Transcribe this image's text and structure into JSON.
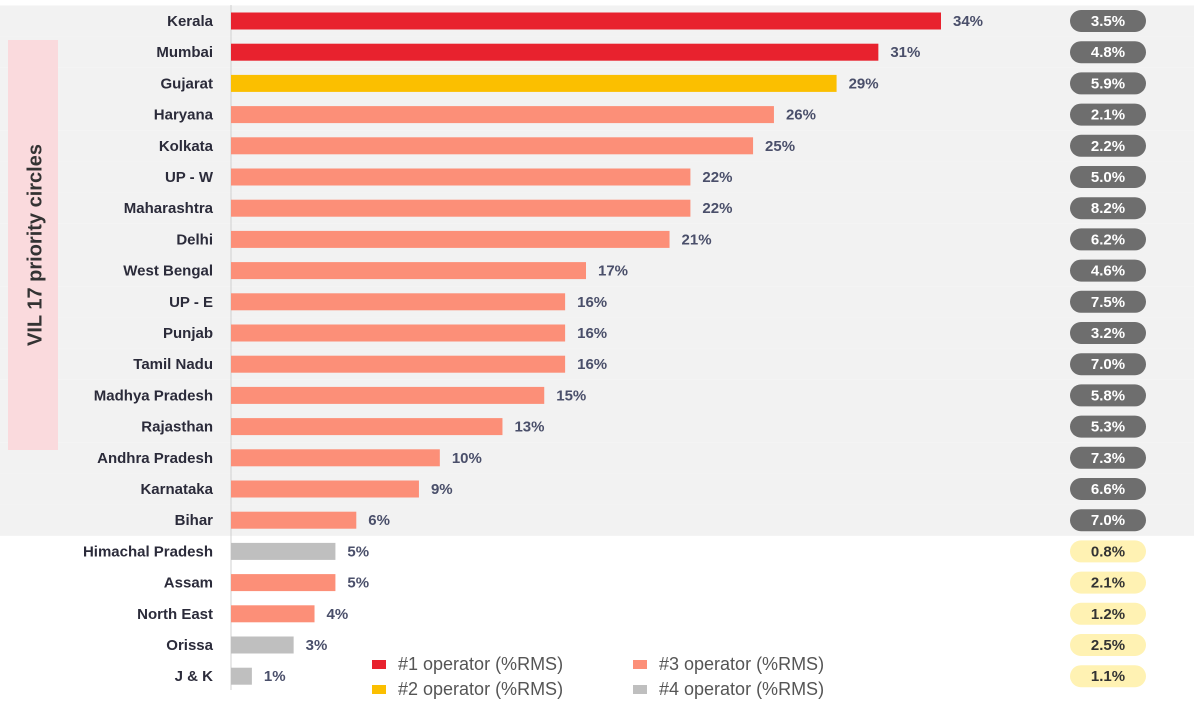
{
  "chart_data": {
    "type": "bar",
    "group_label": "VIL 17 priority circles",
    "categories": [
      "Kerala",
      "Mumbai",
      "Gujarat",
      "Haryana",
      "Kolkata",
      "UP - W",
      "Maharashtra",
      "Delhi",
      "West Bengal",
      "UP - E",
      "Punjab",
      "Tamil Nadu",
      "Madhya Pradesh",
      "Rajasthan",
      "Andhra Pradesh",
      "Karnataka",
      "Bihar",
      "Himachal Pradesh",
      "Assam",
      "North East",
      "Orissa",
      "J & K"
    ],
    "values": [
      34,
      31,
      29,
      26,
      25,
      22,
      22,
      21,
      17,
      16,
      16,
      16,
      15,
      13,
      10,
      9,
      6,
      5,
      5,
      4,
      3,
      1
    ],
    "value_labels": [
      "34%",
      "31%",
      "29%",
      "26%",
      "25%",
      "22%",
      "22%",
      "21%",
      "17%",
      "16%",
      "16%",
      "16%",
      "15%",
      "13%",
      "10%",
      "9%",
      "6%",
      "5%",
      "5%",
      "4%",
      "3%",
      "1%"
    ],
    "bar_colors": [
      "#e8222e",
      "#e8222e",
      "#fbbf00",
      "#fc8f78",
      "#fc8f78",
      "#fc8f78",
      "#fc8f78",
      "#fc8f78",
      "#fc8f78",
      "#fc8f78",
      "#fc8f78",
      "#fc8f78",
      "#fc8f78",
      "#fc8f78",
      "#fc8f78",
      "#fc8f78",
      "#fc8f78",
      "#bfbfbf",
      "#fc8f78",
      "#fc8f78",
      "#bfbfbf",
      "#bfbfbf"
    ],
    "side_values": [
      3.5,
      4.8,
      5.9,
      2.1,
      2.2,
      5.0,
      8.2,
      6.2,
      4.6,
      7.5,
      3.2,
      7.0,
      5.8,
      5.3,
      7.3,
      6.6,
      7.0,
      0.8,
      2.1,
      1.2,
      2.5,
      1.1
    ],
    "side_labels": [
      "3.5%",
      "4.8%",
      "5.9%",
      "2.1%",
      "2.2%",
      "5.0%",
      "8.2%",
      "6.2%",
      "4.6%",
      "7.5%",
      "3.2%",
      "7.0%",
      "5.8%",
      "5.3%",
      "7.3%",
      "6.6%",
      "7.0%",
      "0.8%",
      "2.1%",
      "1.2%",
      "2.5%",
      "1.1%"
    ],
    "priority": [
      true,
      true,
      true,
      true,
      true,
      true,
      true,
      true,
      true,
      true,
      true,
      true,
      true,
      true,
      true,
      true,
      true,
      false,
      false,
      false,
      false,
      false
    ],
    "xlim": [
      0,
      34
    ],
    "legend": [
      {
        "name": "#1 operator (%RMS)",
        "color": "#e8222e"
      },
      {
        "name": "#2 operator (%RMS)",
        "color": "#fbbf00"
      },
      {
        "name": "#3 operator (%RMS)",
        "color": "#fc8f78"
      },
      {
        "name": "#4 operator (%RMS)",
        "color": "#bfbfbf"
      }
    ]
  }
}
